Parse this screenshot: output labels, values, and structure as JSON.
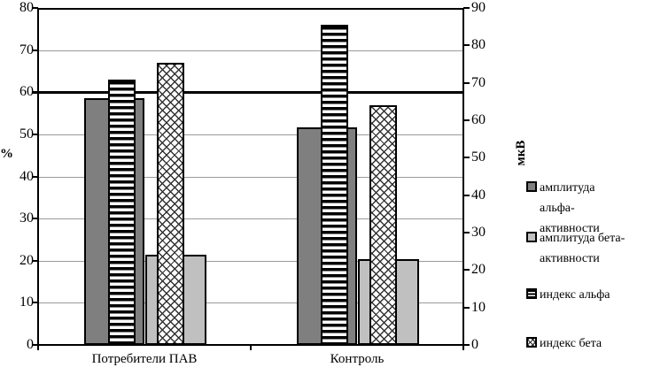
{
  "chart_data": {
    "type": "bar",
    "title": "",
    "categories": [
      "Потребители ПАВ",
      "Контроль"
    ],
    "left_axis": {
      "label": "%",
      "min": 0,
      "max": 80,
      "step": 10,
      "tick_labels": [
        "0",
        "10",
        "20",
        "30",
        "40",
        "50",
        "60",
        "70",
        "80"
      ]
    },
    "right_axis": {
      "label": "мкВ",
      "min": 0,
      "max": 90,
      "step": 10,
      "tick_labels": [
        "0",
        "10",
        "20",
        "30",
        "40",
        "50",
        "60",
        "70",
        "80",
        "90"
      ]
    },
    "reference_line": {
      "axis": "left",
      "value": 60
    },
    "grid": "horizontal",
    "legend_position": "right",
    "series": [
      {
        "name": "амплитуда альфа-активности",
        "axis": "right",
        "unit": "мкВ",
        "pattern": "solid-dark",
        "color": "#7f7f7f",
        "values": [
          66,
          58
        ]
      },
      {
        "name": "амплитуда бета-активности",
        "axis": "right",
        "unit": "мкВ",
        "pattern": "solid-light",
        "color": "#c0c0c0",
        "values": [
          24,
          23
        ]
      },
      {
        "name": "индекс альфа",
        "axis": "left",
        "unit": "%",
        "pattern": "h-stripes",
        "color": "#000000",
        "values": [
          63,
          76
        ]
      },
      {
        "name": "индекс бета",
        "axis": "left",
        "unit": "%",
        "pattern": "crosshatch",
        "color": "#333333",
        "values": [
          67,
          57
        ]
      }
    ],
    "legend": {
      "entries": [
        {
          "pattern": "solid-dark",
          "lines": [
            "амплитуда",
            "альфа-",
            "активности"
          ]
        },
        {
          "pattern": "solid-light",
          "lines": [
            "амплитуда бета-",
            "активности"
          ]
        },
        {
          "pattern": "h-stripes",
          "lines": [
            "индекс альфа"
          ]
        },
        {
          "pattern": "crosshatch",
          "lines": [
            "индекс бета"
          ]
        }
      ]
    }
  },
  "colors": {
    "grid": "#9a9a9a",
    "axis": "#000000",
    "background": "#ffffff"
  }
}
